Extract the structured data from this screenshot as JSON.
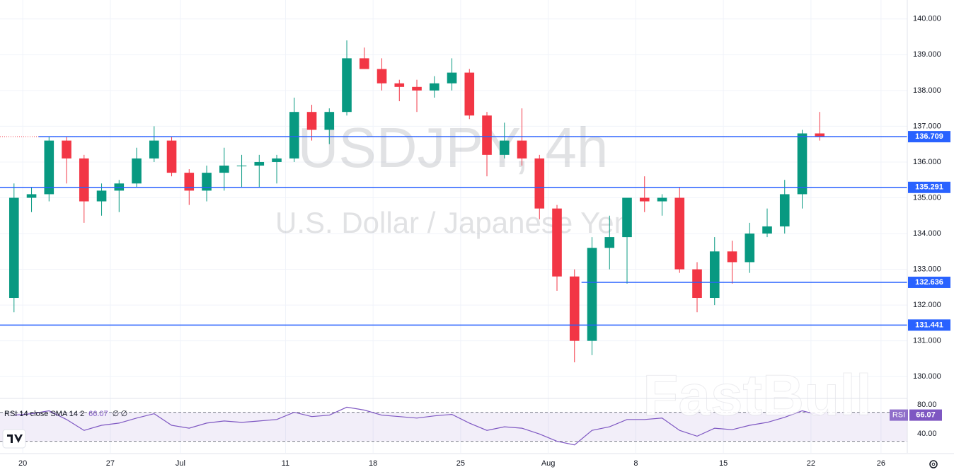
{
  "chart_data": [
    {
      "type": "candlestick",
      "title": "USDJPY, 4h",
      "subtitle": "U.S. Dollar / Japanese Yen",
      "watermark": "FastBull",
      "x": [
        -0.5,
        0.5,
        1.5,
        2.5,
        3.5,
        4.5,
        5.5,
        6.5,
        7.5,
        8.5,
        9.5,
        10.5,
        11.5,
        12.5,
        13.5,
        14.5,
        15.5,
        16.5,
        17.5,
        18.5,
        19.5,
        20.5,
        21.5,
        22.5,
        23.5,
        24.5,
        25.5,
        26.5,
        27.5,
        28.5,
        29.5,
        30.5,
        31.5,
        32.5,
        33.5,
        34.5,
        35.5,
        36.5,
        37.5,
        38.5,
        39.5,
        40.5,
        41.5,
        42.5,
        43.5,
        44.5,
        45.5
      ],
      "open": [
        132.2,
        135.0,
        135.1,
        136.6,
        136.1,
        134.9,
        135.2,
        135.4,
        136.1,
        136.6,
        135.7,
        135.2,
        135.7,
        135.9,
        135.9,
        136.0,
        136.1,
        137.4,
        136.9,
        137.4,
        138.9,
        138.6,
        138.2,
        138.1,
        138.0,
        138.2,
        138.5,
        137.3,
        136.2,
        136.6,
        136.1,
        134.7,
        132.8,
        131.0,
        133.6,
        133.9,
        135.0,
        134.9,
        135.0,
        133.0,
        132.2,
        133.5,
        133.2,
        134.0,
        134.2,
        135.1,
        136.8
      ],
      "high": [
        135.4,
        135.3,
        136.7,
        136.7,
        136.2,
        135.4,
        135.5,
        136.4,
        137.0,
        136.7,
        135.8,
        135.9,
        136.4,
        136.2,
        136.2,
        136.2,
        137.8,
        137.6,
        137.5,
        139.4,
        139.2,
        138.9,
        138.3,
        138.3,
        138.4,
        138.9,
        138.6,
        137.4,
        137.1,
        137.5,
        136.2,
        134.8,
        133.0,
        133.9,
        134.5,
        135.0,
        135.6,
        135.1,
        135.3,
        133.2,
        133.9,
        133.8,
        134.3,
        134.7,
        135.5,
        136.9,
        137.4
      ],
      "low": [
        131.8,
        134.6,
        134.9,
        135.4,
        134.3,
        134.5,
        134.6,
        135.3,
        136.0,
        135.6,
        134.8,
        134.9,
        135.2,
        135.3,
        135.3,
        135.4,
        136.0,
        136.6,
        136.5,
        137.3,
        138.6,
        138.0,
        137.7,
        137.4,
        137.8,
        138.0,
        137.2,
        135.6,
        136.1,
        135.9,
        134.4,
        132.4,
        130.4,
        130.6,
        133.0,
        132.6,
        134.6,
        134.5,
        132.9,
        131.8,
        132.0,
        132.6,
        132.9,
        133.9,
        134.0,
        134.7,
        136.6
      ],
      "close": [
        135.0,
        135.1,
        136.6,
        136.1,
        134.9,
        135.2,
        135.4,
        136.1,
        136.6,
        135.7,
        135.2,
        135.7,
        135.9,
        135.9,
        136.0,
        136.1,
        137.4,
        136.9,
        137.4,
        138.9,
        138.6,
        138.2,
        138.1,
        138.0,
        138.2,
        138.5,
        137.3,
        136.2,
        136.6,
        136.1,
        134.7,
        132.8,
        131.0,
        133.6,
        133.9,
        135.0,
        134.9,
        135.0,
        133.0,
        132.2,
        133.5,
        133.2,
        134.0,
        134.2,
        135.1,
        136.8,
        136.709
      ],
      "up_color": "#089981",
      "down_color": "#f23645",
      "xlim": [
        -1.3,
        50.5
      ],
      "xticks": [
        {
          "value": 0,
          "label": "20"
        },
        {
          "value": 5,
          "label": "27"
        },
        {
          "value": 9,
          "label": "Jul"
        },
        {
          "value": 15,
          "label": "11"
        },
        {
          "value": 20,
          "label": "18"
        },
        {
          "value": 25,
          "label": "25"
        },
        {
          "value": 30,
          "label": "Aug"
        },
        {
          "value": 35,
          "label": "8"
        },
        {
          "value": 40,
          "label": "15"
        },
        {
          "value": 45,
          "label": "22"
        },
        {
          "value": 49,
          "label": "26"
        }
      ],
      "ylim": [
        129.45,
        140.53
      ],
      "yticks": [
        {
          "value": 130,
          "label": "130.000"
        },
        {
          "value": 131,
          "label": "131.000"
        },
        {
          "value": 132,
          "label": "132.000"
        },
        {
          "value": 133,
          "label": "133.000"
        },
        {
          "value": 134,
          "label": "134.000"
        },
        {
          "value": 135,
          "label": "135.000"
        },
        {
          "value": 136,
          "label": "136.000"
        },
        {
          "value": 137,
          "label": "137.000"
        },
        {
          "value": 138,
          "label": "138.000"
        },
        {
          "value": 139,
          "label": "139.000"
        },
        {
          "value": 140,
          "label": "140.000"
        }
      ],
      "grid": true,
      "hlines": [
        {
          "value": 136.709,
          "x_start": 0.9,
          "color": "#2962ff"
        },
        {
          "value": 135.291,
          "x_start": -1.3,
          "color": "#2962ff"
        },
        {
          "value": 132.636,
          "x_start": 31.9,
          "color": "#2962ff"
        },
        {
          "value": 131.441,
          "x_start": -1.3,
          "color": "#2962ff"
        }
      ]
    },
    {
      "type": "line",
      "title": "RSI 14 close SMA 14 2",
      "na_labels": [
        "∅",
        "∅"
      ],
      "x": [
        -0.5,
        0.5,
        1.5,
        2.5,
        3.5,
        4.5,
        5.5,
        6.5,
        7.5,
        8.5,
        9.5,
        10.5,
        11.5,
        12.5,
        13.5,
        14.5,
        15.5,
        16.5,
        17.5,
        18.5,
        19.5,
        20.5,
        21.5,
        22.5,
        23.5,
        24.5,
        25.5,
        26.5,
        27.5,
        28.5,
        29.5,
        30.5,
        31.5,
        32.5,
        33.5,
        34.5,
        35.5,
        36.5,
        37.5,
        38.5,
        39.5,
        40.5,
        41.5,
        42.5,
        43.5,
        44.5,
        45.5
      ],
      "series": [
        {
          "name": "RSI",
          "color": "#7e57c2",
          "values": [
            66,
            68,
            72,
            60,
            45,
            52,
            55,
            62,
            68,
            52,
            48,
            55,
            58,
            56,
            58,
            60,
            70,
            64,
            66,
            77,
            73,
            66,
            64,
            62,
            65,
            67,
            55,
            45,
            50,
            48,
            40,
            30,
            25,
            45,
            50,
            60,
            60,
            62,
            45,
            37,
            48,
            46,
            52,
            56,
            63,
            72,
            66.07
          ]
        }
      ],
      "xlim": [
        -1.3,
        50.5
      ],
      "ylim": [
        14,
        92
      ],
      "yticks": [
        {
          "value": 40,
          "label": "40.00"
        },
        {
          "value": 80,
          "label": "80.00"
        }
      ],
      "band": [
        30,
        70
      ]
    }
  ]
}
